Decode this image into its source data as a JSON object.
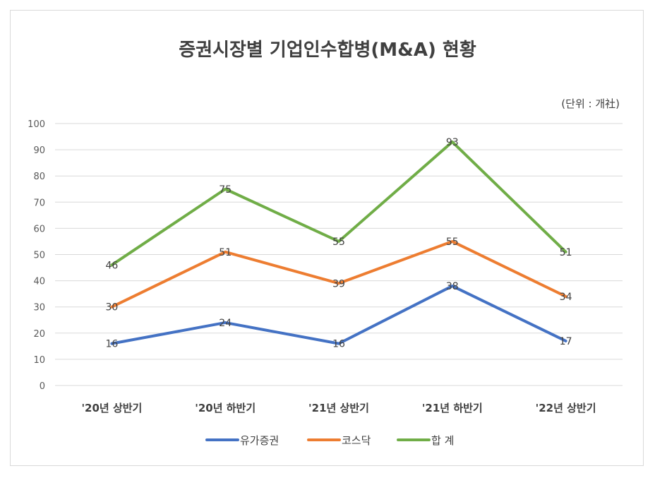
{
  "chart_data": {
    "type": "line",
    "title": "증권시장별 기업인수합병(M&A) 현황",
    "unit_label": "(단위 : 개社)",
    "categories": [
      "'20년 상반기",
      "'20년 하반기",
      "'21년 상반기",
      "'21년 하반기",
      "'22년 상반기"
    ],
    "ylim": [
      0,
      100
    ],
    "yticks": [
      0,
      10,
      20,
      30,
      40,
      50,
      60,
      70,
      80,
      90,
      100
    ],
    "grid": true,
    "legend_position": "bottom",
    "series": [
      {
        "name": "유가증권",
        "color": "#4472C4",
        "values": [
          16,
          24,
          16,
          38,
          17
        ]
      },
      {
        "name": "코스닥",
        "color": "#ED7D31",
        "values": [
          30,
          51,
          39,
          55,
          34
        ]
      },
      {
        "name": "합 계",
        "color": "#70AD47",
        "values": [
          46,
          75,
          55,
          93,
          51
        ]
      }
    ]
  }
}
